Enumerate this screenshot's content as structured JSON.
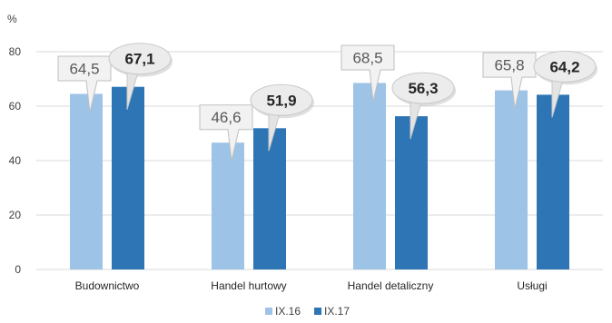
{
  "chart_data": {
    "type": "bar",
    "ylabel": "%",
    "ylim": [
      0,
      80
    ],
    "yticks": [
      "0",
      "20",
      "40",
      "60",
      "80"
    ],
    "grid": true,
    "legend_position": "bottom",
    "categories": [
      "Budownictwo",
      "Handel hurtowy",
      "Handel detaliczny",
      "Usługi"
    ],
    "series": [
      {
        "name": "IX.16",
        "color": "#9dc3e6",
        "values": [
          64.5,
          46.6,
          68.5,
          65.8
        ],
        "labels": [
          "64,5",
          "46,6",
          "68,5",
          "65,8"
        ]
      },
      {
        "name": "IX.17",
        "color": "#2e75b6",
        "values": [
          67.1,
          51.9,
          56.3,
          64.2
        ],
        "labels": [
          "67,1",
          "51,9",
          "56,3",
          "64,2"
        ]
      }
    ]
  }
}
